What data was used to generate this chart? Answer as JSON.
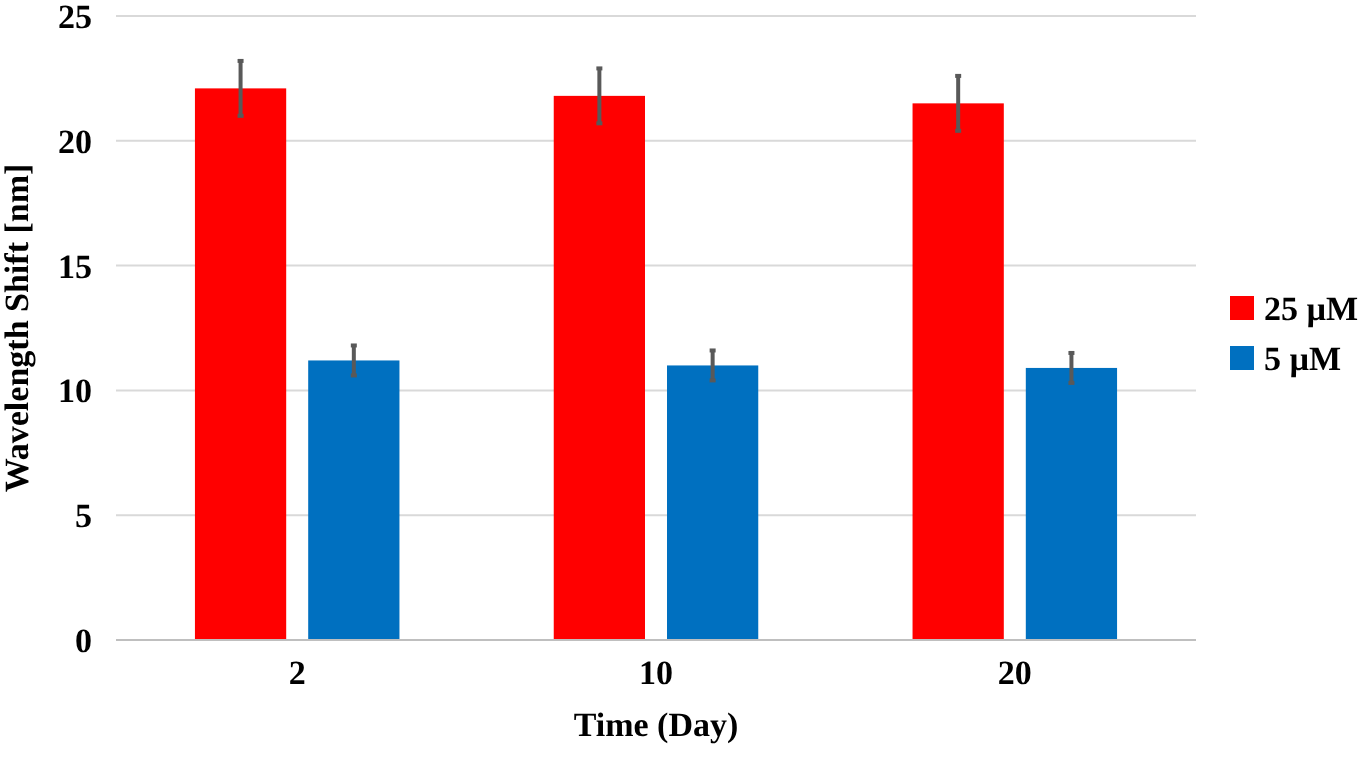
{
  "chart_data": {
    "type": "bar",
    "xlabel": "Time (Day)",
    "ylabel": "Wavelength Shift [nm]",
    "categories": [
      "2",
      "10",
      "20"
    ],
    "series": [
      {
        "name": "25 µM",
        "color": "#ff0000",
        "values": [
          22.1,
          21.8,
          21.5
        ],
        "errors": [
          1.1,
          1.1,
          1.1
        ]
      },
      {
        "name": "5 µM",
        "color": "#0070c0",
        "values": [
          11.2,
          11.0,
          10.9
        ],
        "errors": [
          0.6,
          0.6,
          0.6
        ]
      }
    ],
    "ylim": [
      0,
      25
    ],
    "yticks": [
      0,
      5,
      10,
      15,
      20,
      25
    ],
    "grid": "y",
    "legend": "right"
  }
}
